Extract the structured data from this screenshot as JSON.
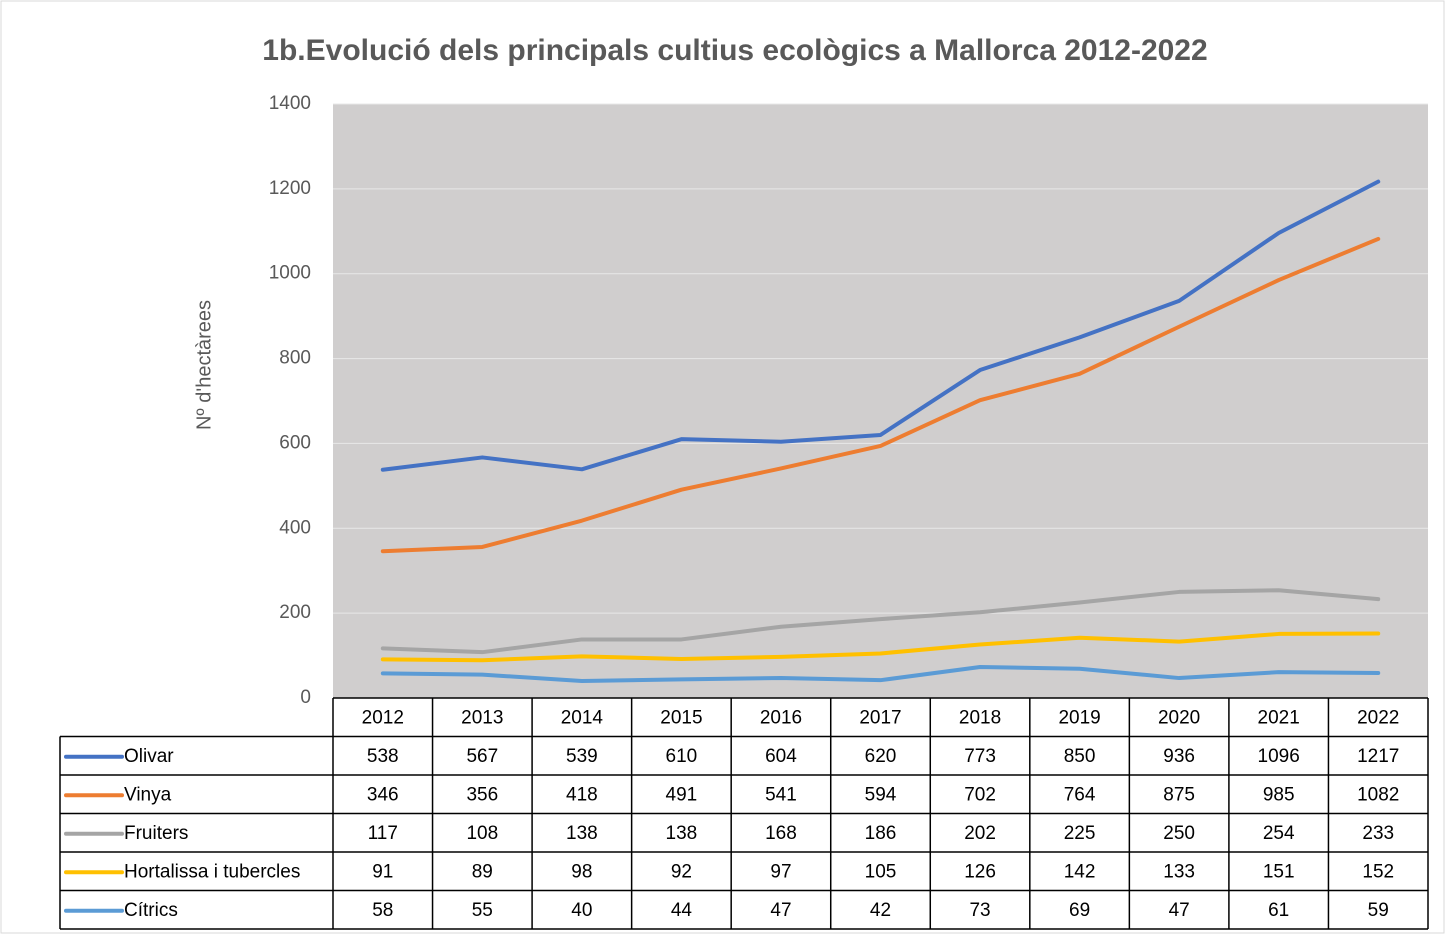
{
  "chart_data": {
    "type": "line",
    "title": "1b.Evolució dels principals cultius ecològics a Mallorca 2012-2022",
    "y_label": "Nº d'hectàrees",
    "categories": [
      "2012",
      "2013",
      "2014",
      "2015",
      "2016",
      "2017",
      "2018",
      "2019",
      "2020",
      "2021",
      "2022"
    ],
    "series": [
      {
        "name": "Olivar",
        "color": "#4472c4",
        "values": [
          538,
          567,
          539,
          610,
          604,
          620,
          773,
          850,
          936,
          1096,
          1217
        ]
      },
      {
        "name": "Vinya",
        "color": "#ed7d31",
        "values": [
          346,
          356,
          418,
          491,
          541,
          594,
          702,
          764,
          875,
          985,
          1082
        ]
      },
      {
        "name": "Fruiters",
        "color": "#a5a5a5",
        "values": [
          117,
          108,
          138,
          138,
          168,
          186,
          202,
          225,
          250,
          254,
          233
        ]
      },
      {
        "name": "Hortalissa i tubercles",
        "color": "#ffc000",
        "values": [
          91,
          89,
          98,
          92,
          97,
          105,
          126,
          142,
          133,
          151,
          152
        ]
      },
      {
        "name": "Cítrics",
        "color": "#5b9bd5",
        "values": [
          58,
          55,
          40,
          44,
          47,
          42,
          73,
          69,
          47,
          61,
          59
        ]
      }
    ],
    "ylim": [
      0,
      1400
    ],
    "yticks": [
      0,
      200,
      400,
      600,
      800,
      1000,
      1200,
      1400
    ],
    "grid": true,
    "plot_background": "#d0cece"
  }
}
